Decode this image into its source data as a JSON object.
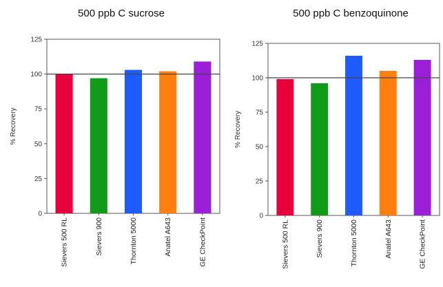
{
  "chart_data": [
    {
      "type": "bar",
      "title": "500 ppb C sucrose",
      "ylabel": "% Recovery",
      "xlabel": "",
      "ylim": [
        0,
        125
      ],
      "yticks": [
        0,
        25,
        50,
        75,
        100,
        125
      ],
      "reference_line": 100,
      "grid": false,
      "categories": [
        "Sievers 500 RL",
        "Sievers 900",
        "Thornton 5000",
        "Anatel A643",
        "GE CheckPoint"
      ],
      "values": [
        100,
        97,
        103,
        102,
        109
      ],
      "colors": [
        "#e8003c",
        "#129a1a",
        "#1f5cff",
        "#ff7f0e",
        "#9a1fd6"
      ]
    },
    {
      "type": "bar",
      "title": "500 ppb C benzoquinone",
      "ylabel": "% Recovery",
      "xlabel": "",
      "ylim": [
        0,
        125
      ],
      "yticks": [
        0,
        25,
        50,
        75,
        100,
        125
      ],
      "reference_line": 100,
      "grid": false,
      "categories": [
        "Sievers 500 RL",
        "Sievers 900",
        "Thornton 5000",
        "Anatel A643",
        "GE CheckPoint"
      ],
      "values": [
        99,
        96,
        116,
        105,
        113
      ],
      "colors": [
        "#e8003c",
        "#129a1a",
        "#1f5cff",
        "#ff7f0e",
        "#9a1fd6"
      ]
    }
  ]
}
